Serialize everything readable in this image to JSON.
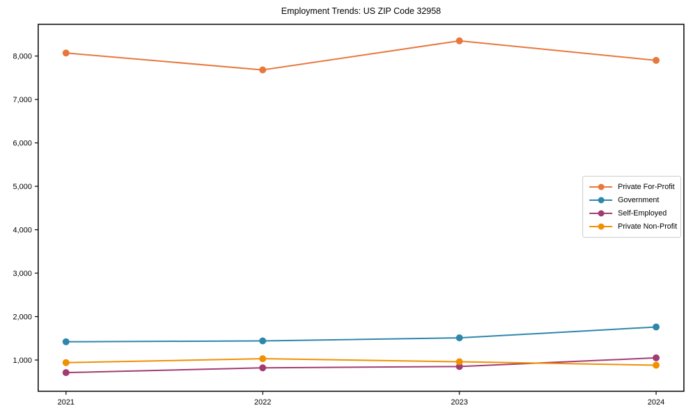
{
  "page": {
    "background": "#ffffff",
    "axis_color": "#000000",
    "legend_border_color": "#cccccc"
  },
  "chart_data": {
    "type": "line",
    "title": "Employment Trends: US ZIP Code 32958",
    "x": [
      2021,
      2022,
      2023,
      2024
    ],
    "x_tick_labels": [
      "2021",
      "2022",
      "2023",
      "2024"
    ],
    "series": [
      {
        "name": "Private For-Profit",
        "color": "#E8773D",
        "values": [
          8070,
          7680,
          8350,
          7900
        ]
      },
      {
        "name": "Government",
        "color": "#2E86AB",
        "values": [
          1420,
          1440,
          1510,
          1760
        ]
      },
      {
        "name": "Self-Employed",
        "color": "#A23B72",
        "values": [
          710,
          820,
          850,
          1050
        ]
      },
      {
        "name": "Private Non-Profit",
        "color": "#F18F01",
        "values": [
          940,
          1030,
          960,
          880
        ]
      }
    ],
    "y_ticks": [
      1000,
      2000,
      3000,
      4000,
      5000,
      6000,
      7000,
      8000
    ],
    "y_tick_labels": [
      "1,000",
      "2,000",
      "3,000",
      "4,000",
      "5,000",
      "6,000",
      "7,000",
      "8,000"
    ],
    "ylim": [
      280,
      8730
    ],
    "x_margin_fraction": 0.043,
    "grid": false,
    "legend_position": "right-center",
    "marker": "circle",
    "line_width": 2,
    "marker_radius": 5
  }
}
